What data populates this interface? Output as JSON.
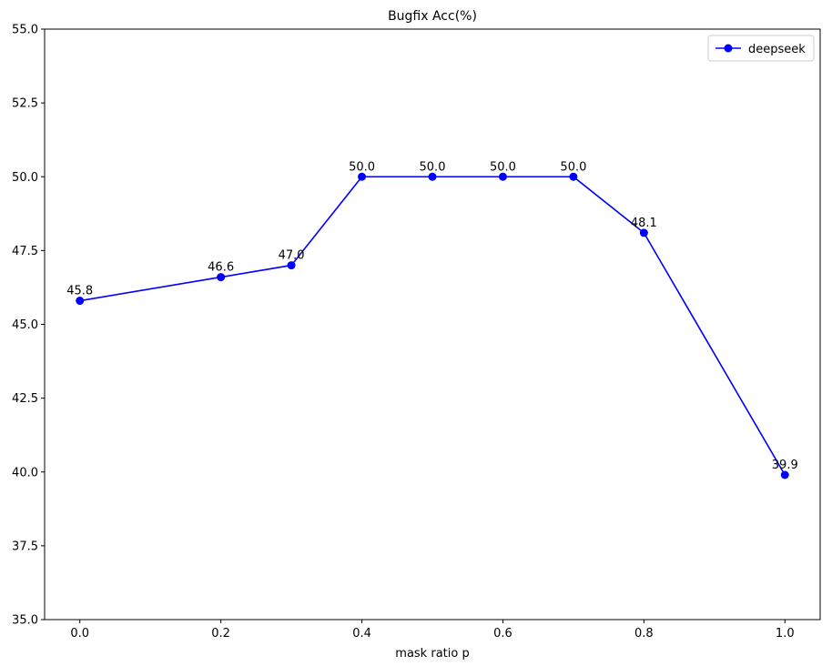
{
  "chart_data": {
    "type": "line",
    "title": "Bugfix Acc(%)",
    "xlabel": "mask ratio p",
    "ylabel": "",
    "xlim": [
      -0.05,
      1.05
    ],
    "ylim": [
      35.0,
      55.0
    ],
    "x_ticks": [
      0.0,
      0.2,
      0.4,
      0.6,
      0.8,
      1.0
    ],
    "x_tick_labels": [
      "0.0",
      "0.2",
      "0.4",
      "0.6",
      "0.8",
      "1.0"
    ],
    "y_ticks": [
      35.0,
      37.5,
      40.0,
      42.5,
      45.0,
      47.5,
      50.0,
      52.5,
      55.0
    ],
    "y_tick_labels": [
      "35.0",
      "37.5",
      "40.0",
      "42.5",
      "45.0",
      "47.5",
      "50.0",
      "52.5",
      "55.0"
    ],
    "grid": false,
    "legend_position": "top-right",
    "series": [
      {
        "name": "deepseek",
        "color": "#0000ff",
        "marker": "circle",
        "x": [
          0.0,
          0.2,
          0.3,
          0.4,
          0.5,
          0.6,
          0.7,
          0.8,
          1.0
        ],
        "y": [
          45.8,
          46.6,
          47.0,
          50.0,
          50.0,
          50.0,
          50.0,
          48.1,
          39.9
        ],
        "data_labels": [
          "45.8",
          "46.6",
          "47.0",
          "50.0",
          "50.0",
          "50.0",
          "50.0",
          "48.1",
          "39.9"
        ]
      }
    ]
  }
}
